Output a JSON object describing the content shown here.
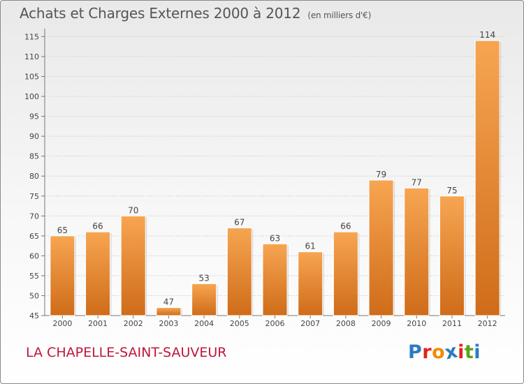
{
  "header": {
    "title": "Achats et Charges Externes 2000 à 2012",
    "unit": "(en milliers d'€)"
  },
  "footer": {
    "commune": "LA CHAPELLE-SAINT-SAUVEUR",
    "logo_text": "Proxiti"
  },
  "colors": {
    "bar_light": "#f7a552",
    "bar_dark": "#cf6c19",
    "commune_text": "#c0153a",
    "logo_letters": [
      "#2b7bc0",
      "#e2231a",
      "#f28c00",
      "#2b7bc0",
      "#e2231a",
      "#58a618",
      "#2b7bc0"
    ]
  },
  "chart_data": {
    "type": "bar",
    "categories": [
      "2000",
      "2001",
      "2002",
      "2003",
      "2004",
      "2005",
      "2006",
      "2007",
      "2008",
      "2009",
      "2010",
      "2011",
      "2012"
    ],
    "values": [
      65,
      66,
      70,
      47,
      53,
      67,
      63,
      61,
      66,
      79,
      77,
      75,
      114
    ],
    "title": "Achats et Charges Externes 2000 à 2012",
    "ylim": [
      45,
      117
    ],
    "yticks": [
      45,
      50,
      55,
      60,
      65,
      70,
      75,
      80,
      85,
      90,
      95,
      100,
      105,
      110,
      115
    ],
    "grid": true,
    "data_labels": true
  }
}
